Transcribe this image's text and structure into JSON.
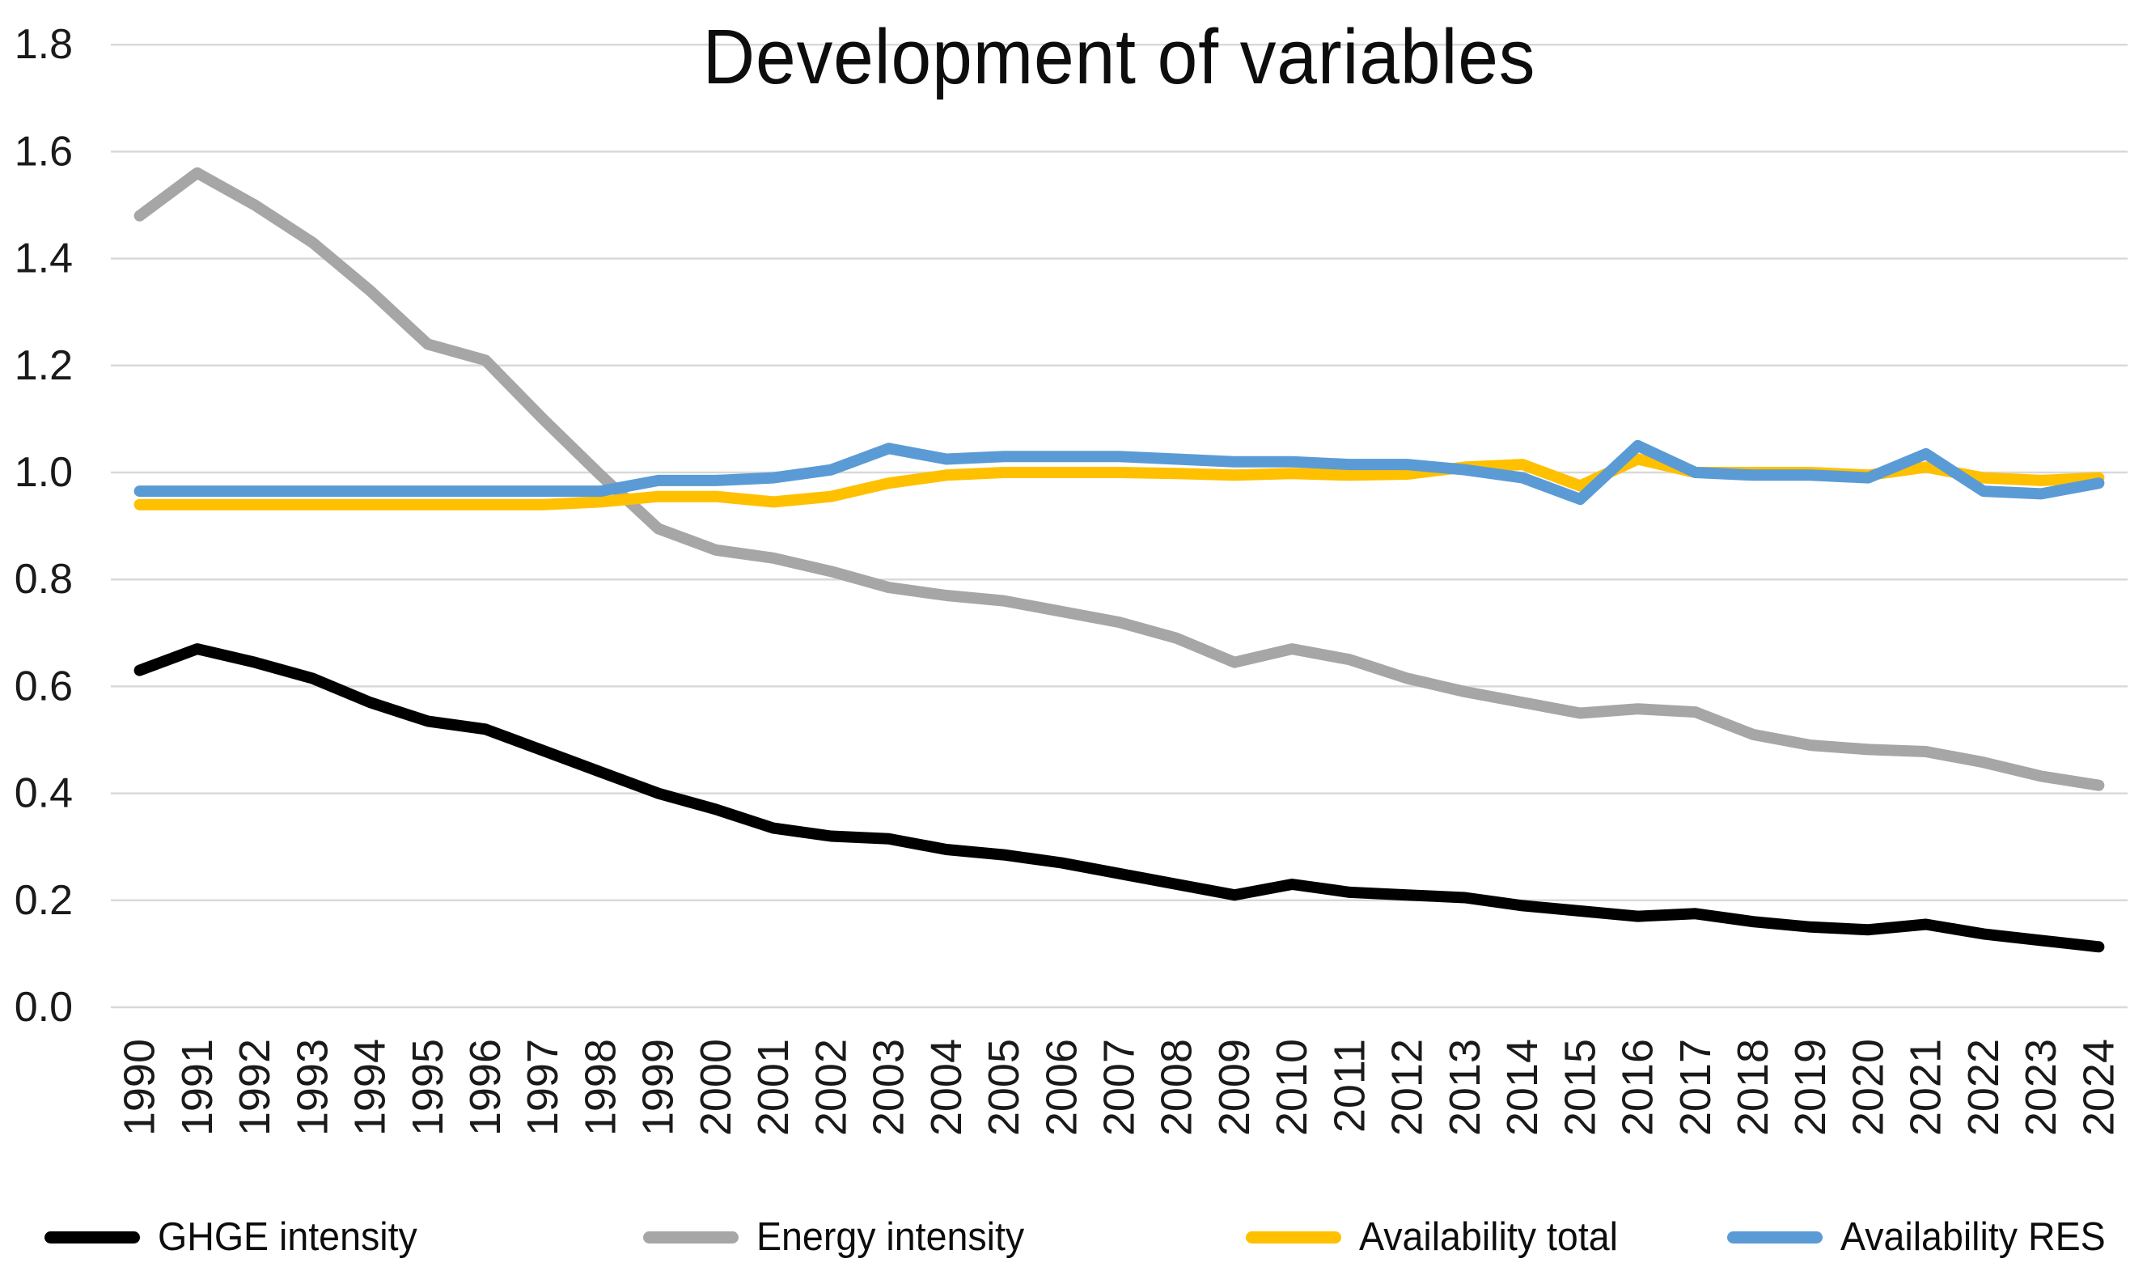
{
  "chart_data": {
    "type": "line",
    "title": "Development of variables",
    "xlabel": "",
    "ylabel": "",
    "ylim": [
      0.0,
      1.8
    ],
    "ytick_step": 0.2,
    "ytick_labels": [
      "0.0",
      "0.2",
      "0.4",
      "0.6",
      "0.8",
      "1.0",
      "1.2",
      "1.4",
      "1.6",
      "1.8"
    ],
    "grid": true,
    "gridline_color": "#D9D9D9",
    "axis_text_color": "#1A1A1A",
    "background_color": "#FFFFFF",
    "legend_position": "bottom",
    "x": [
      "1990",
      "1991",
      "1992",
      "1993",
      "1994",
      "1995",
      "1996",
      "1997",
      "1998",
      "1999",
      "2000",
      "2001",
      "2002",
      "2003",
      "2004",
      "2005",
      "2006",
      "2007",
      "2008",
      "2009",
      "2010",
      "2011",
      "2012",
      "2013",
      "2014",
      "2015",
      "2016",
      "2017",
      "2018",
      "2019",
      "2020",
      "2021",
      "2022",
      "2023",
      "2024"
    ],
    "series": [
      {
        "name": "GHGE intensity",
        "color": "#000000",
        "values": [
          0.63,
          0.67,
          0.645,
          0.615,
          0.57,
          0.535,
          0.52,
          0.48,
          0.44,
          0.4,
          0.37,
          0.335,
          0.32,
          0.315,
          0.295,
          0.285,
          0.27,
          0.25,
          0.23,
          0.21,
          0.23,
          0.215,
          0.21,
          0.205,
          0.19,
          0.18,
          0.17,
          0.175,
          0.16,
          0.15,
          0.145,
          0.155,
          0.137,
          0.125,
          0.113
        ]
      },
      {
        "name": "Energy intensity",
        "color": "#A6A6A6",
        "values": [
          1.48,
          1.56,
          1.5,
          1.43,
          1.34,
          1.24,
          1.21,
          1.1,
          0.995,
          0.895,
          0.855,
          0.84,
          0.815,
          0.785,
          0.77,
          0.76,
          0.74,
          0.72,
          0.69,
          0.645,
          0.67,
          0.65,
          0.615,
          0.59,
          0.57,
          0.55,
          0.558,
          0.552,
          0.51,
          0.49,
          0.482,
          0.478,
          0.458,
          0.432,
          0.415
        ]
      },
      {
        "name": "Availability total",
        "color": "#FFC000",
        "values": [
          0.94,
          0.94,
          0.94,
          0.94,
          0.94,
          0.94,
          0.94,
          0.94,
          0.945,
          0.955,
          0.955,
          0.945,
          0.955,
          0.98,
          0.995,
          1.0,
          1.0,
          1.0,
          0.998,
          0.995,
          0.998,
          0.995,
          0.997,
          1.01,
          1.015,
          0.975,
          1.025,
          1.0,
          1.0,
          1.0,
          0.995,
          1.01,
          0.99,
          0.985,
          0.99
        ]
      },
      {
        "name": "Availability RES",
        "color": "#5B9BD5",
        "values": [
          0.965,
          0.965,
          0.965,
          0.965,
          0.965,
          0.965,
          0.965,
          0.965,
          0.965,
          0.985,
          0.985,
          0.99,
          1.005,
          1.045,
          1.025,
          1.03,
          1.03,
          1.03,
          1.025,
          1.02,
          1.02,
          1.015,
          1.015,
          1.005,
          0.99,
          0.95,
          1.05,
          1.0,
          0.995,
          0.995,
          0.99,
          1.035,
          0.965,
          0.96,
          0.98
        ]
      }
    ]
  },
  "layout_values": {
    "line_width": 14
  }
}
